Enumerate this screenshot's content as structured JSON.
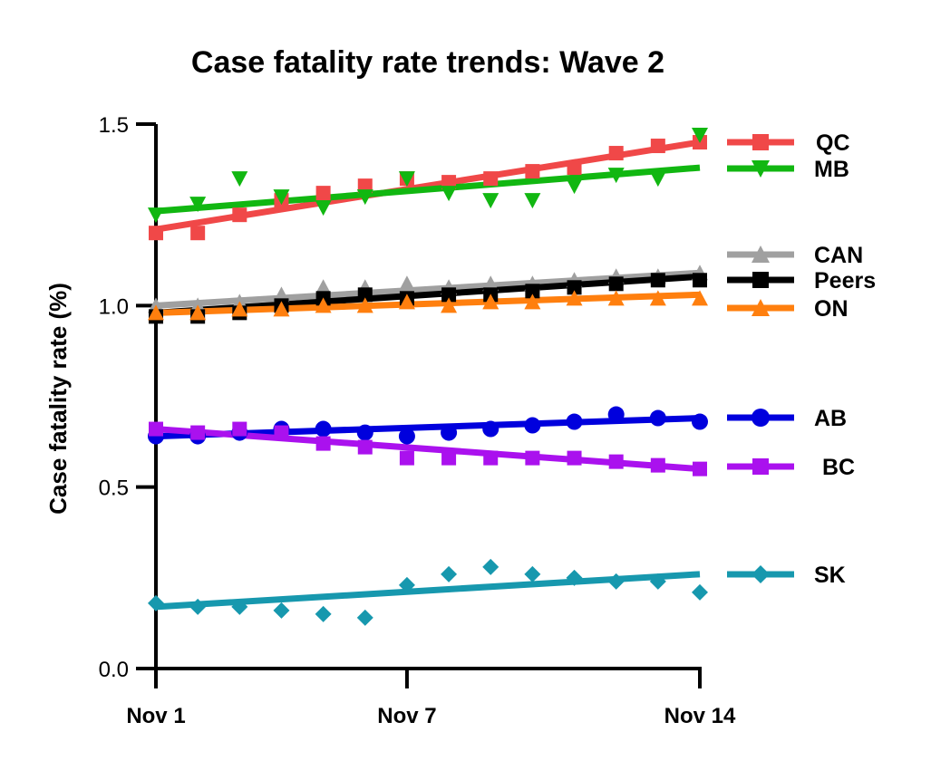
{
  "chart_data": {
    "type": "scatter",
    "title": "Case fatality rate trends: Wave 2",
    "xlabel": "",
    "ylabel": "Case fatality rate (%)",
    "ylim": [
      0,
      1.5
    ],
    "yticks": [
      0.0,
      0.5,
      1.0,
      1.5
    ],
    "ytick_labels": [
      "0.0",
      "0.5",
      "1.0",
      "1.5"
    ],
    "xlim": [
      1,
      14
    ],
    "xticks": [
      1,
      7,
      14
    ],
    "xtick_labels": [
      "Nov 1",
      "Nov 7",
      "Nov 14"
    ],
    "x": [
      1,
      2,
      3,
      4,
      5,
      6,
      7,
      8,
      9,
      10,
      11,
      12,
      13,
      14
    ],
    "trendline": "linear",
    "legend_position": "right",
    "series": [
      {
        "name": "QC",
        "color": "#F04848",
        "marker": "square",
        "values": [
          1.2,
          1.2,
          1.25,
          1.29,
          1.31,
          1.33,
          1.35,
          1.34,
          1.35,
          1.37,
          1.38,
          1.42,
          1.44,
          1.45
        ],
        "fit": [
          1.21,
          1.45
        ]
      },
      {
        "name": "MB",
        "color": "#11B711",
        "marker": "triangle-down",
        "values": [
          1.25,
          1.28,
          1.35,
          1.3,
          1.27,
          1.3,
          1.35,
          1.31,
          1.29,
          1.29,
          1.33,
          1.36,
          1.35,
          1.47
        ],
        "fit": [
          1.26,
          1.38
        ]
      },
      {
        "name": "CAN",
        "color": "#A0A0A0",
        "marker": "triangle-up",
        "values": [
          1.0,
          1.0,
          1.01,
          1.03,
          1.05,
          1.05,
          1.06,
          1.05,
          1.06,
          1.06,
          1.07,
          1.08,
          1.08,
          1.09
        ],
        "fit": [
          1.0,
          1.09
        ]
      },
      {
        "name": "Peers",
        "color": "#000000",
        "marker": "square",
        "values": [
          0.97,
          0.97,
          0.98,
          1.0,
          1.02,
          1.03,
          1.02,
          1.03,
          1.03,
          1.04,
          1.05,
          1.06,
          1.07,
          1.07
        ],
        "fit": [
          0.98,
          1.08
        ]
      },
      {
        "name": "ON",
        "color": "#FF7F0E",
        "marker": "triangle-up",
        "values": [
          0.98,
          0.98,
          0.99,
          0.99,
          1.0,
          1.0,
          1.01,
          1.0,
          1.01,
          1.01,
          1.02,
          1.02,
          1.02,
          1.02
        ],
        "fit": [
          0.98,
          1.03
        ]
      },
      {
        "name": "AB",
        "color": "#0000DD",
        "marker": "circle",
        "values": [
          0.64,
          0.64,
          0.65,
          0.66,
          0.66,
          0.65,
          0.64,
          0.65,
          0.66,
          0.67,
          0.68,
          0.7,
          0.69,
          0.68
        ],
        "fit": [
          0.64,
          0.69
        ]
      },
      {
        "name": "BC",
        "color": "#AA11EE",
        "marker": "square",
        "values": [
          0.66,
          0.65,
          0.66,
          0.65,
          0.62,
          0.61,
          0.58,
          0.58,
          0.58,
          0.58,
          0.58,
          0.57,
          0.56,
          0.55
        ],
        "fit": [
          0.66,
          0.55
        ]
      },
      {
        "name": "SK",
        "color": "#1798AE",
        "marker": "diamond",
        "values": [
          0.18,
          0.17,
          0.17,
          0.16,
          0.15,
          0.14,
          0.23,
          0.26,
          0.28,
          0.26,
          0.25,
          0.24,
          0.24,
          0.21
        ],
        "fit": [
          0.17,
          0.26
        ]
      }
    ]
  }
}
